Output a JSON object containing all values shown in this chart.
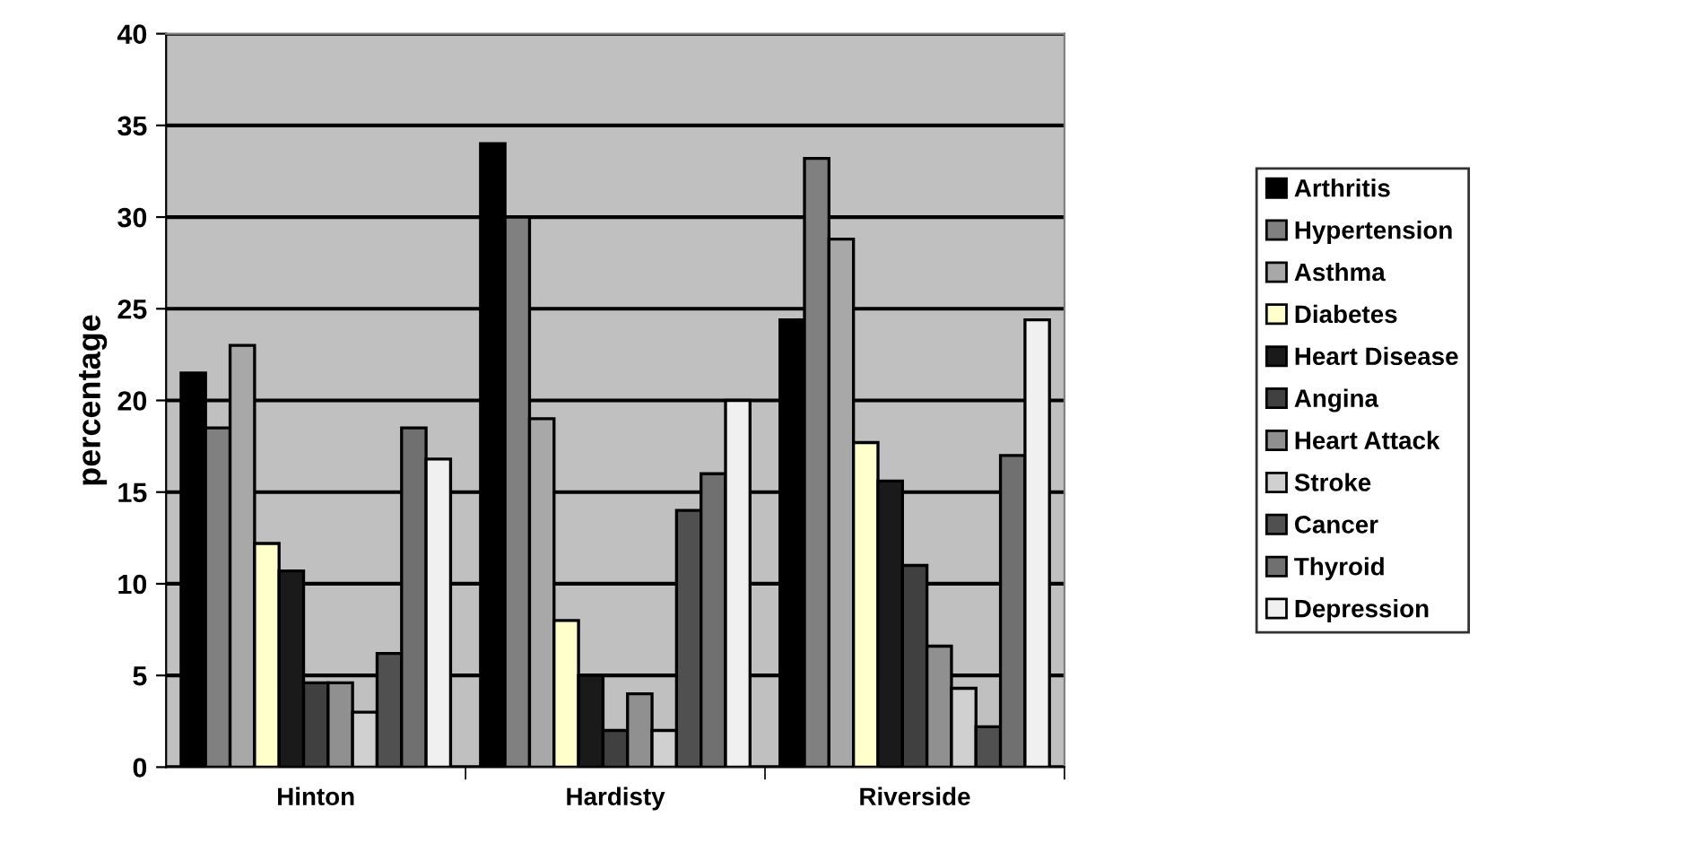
{
  "chart_data": {
    "type": "bar",
    "ylabel": "percentage",
    "categories": [
      "Hinton",
      "Hardisty",
      "Riverside"
    ],
    "series": [
      {
        "name": "Arthritis",
        "color": "#000000",
        "values": [
          21.5,
          34,
          24.4
        ]
      },
      {
        "name": "Hypertension",
        "color": "#808080",
        "values": [
          18.5,
          30,
          33.2
        ]
      },
      {
        "name": "Asthma",
        "color": "#a8a8a8",
        "values": [
          23,
          19,
          28.8
        ]
      },
      {
        "name": "Diabetes",
        "color": "#ffffcc",
        "values": [
          12.2,
          8,
          17.7
        ]
      },
      {
        "name": "Heart Disease",
        "color": "#1a1a1a",
        "values": [
          10.7,
          5,
          15.6
        ]
      },
      {
        "name": "Angina",
        "color": "#404040",
        "values": [
          4.6,
          2,
          11
        ]
      },
      {
        "name": "Heart Attack",
        "color": "#909090",
        "values": [
          4.6,
          4,
          6.6
        ]
      },
      {
        "name": "Stroke",
        "color": "#d0d0d0",
        "values": [
          3,
          2,
          4.3
        ]
      },
      {
        "name": "Cancer",
        "color": "#505050",
        "values": [
          6.2,
          14,
          2.2
        ]
      },
      {
        "name": "Thyroid",
        "color": "#707070",
        "values": [
          18.5,
          16,
          17
        ]
      },
      {
        "name": "Depression",
        "color": "#f0f0f0",
        "values": [
          16.8,
          20,
          24.4
        ]
      }
    ],
    "ylim": [
      0,
      40
    ],
    "yticks": [
      0,
      5,
      10,
      15,
      20,
      25,
      30,
      35,
      40
    ],
    "grid": "y",
    "legend": "right"
  }
}
